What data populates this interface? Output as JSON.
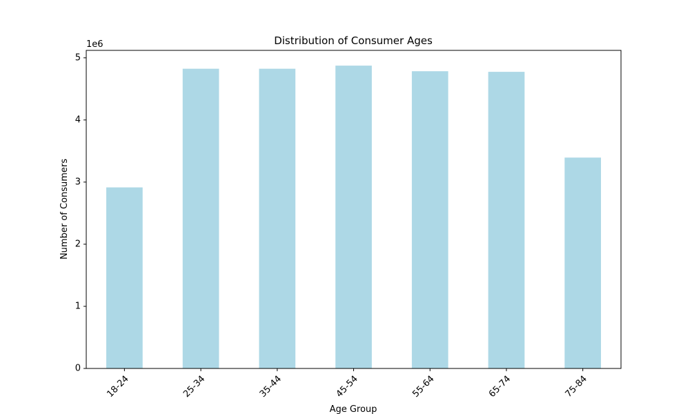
{
  "chart_data": {
    "type": "bar",
    "title": "Distribution of Consumer Ages",
    "xlabel": "Age Group",
    "ylabel": "Number of Consumers",
    "y_offset_label": "1e6",
    "categories": [
      "18-24",
      "25-34",
      "35-44",
      "45-54",
      "55-64",
      "65-74",
      "75-84"
    ],
    "values": [
      2920000,
      4830000,
      4830000,
      4880000,
      4790000,
      4780000,
      3400000
    ],
    "ylim": [
      0,
      5120000
    ],
    "yticks": [
      0,
      1000000,
      2000000,
      3000000,
      4000000,
      5000000
    ],
    "ytick_labels": [
      "0",
      "1",
      "2",
      "3",
      "4",
      "5"
    ],
    "bar_color": "#add8e6",
    "bar_edge_color": "#ffffff",
    "grid": false,
    "legend": "none"
  }
}
